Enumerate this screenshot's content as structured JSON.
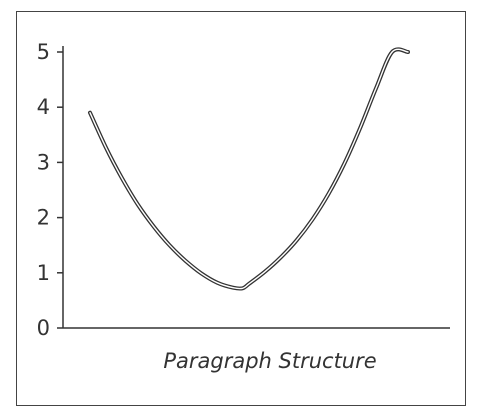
{
  "chart_data": {
    "type": "line",
    "title": "",
    "xlabel": "Paragraph Structure",
    "ylabel": "",
    "ylim": [
      0,
      5
    ],
    "yticks": [
      "0",
      "1",
      "2",
      "3",
      "4",
      "5"
    ],
    "grid": false,
    "series": [
      {
        "color": "#333333",
        "x": [
          0.0,
          0.05,
          0.1,
          0.15,
          0.2,
          0.25,
          0.3,
          0.35,
          0.4,
          0.45,
          0.48,
          0.5,
          0.55,
          0.6,
          0.65,
          0.7,
          0.75,
          0.8,
          0.85,
          0.9,
          0.95,
          1.0
        ],
        "y": [
          3.9,
          3.27,
          2.72,
          2.24,
          1.84,
          1.5,
          1.22,
          0.99,
          0.82,
          0.73,
          0.72,
          0.8,
          1.02,
          1.28,
          1.59,
          1.97,
          2.43,
          2.98,
          3.63,
          4.35,
          5.0,
          5.0
        ]
      }
    ]
  }
}
